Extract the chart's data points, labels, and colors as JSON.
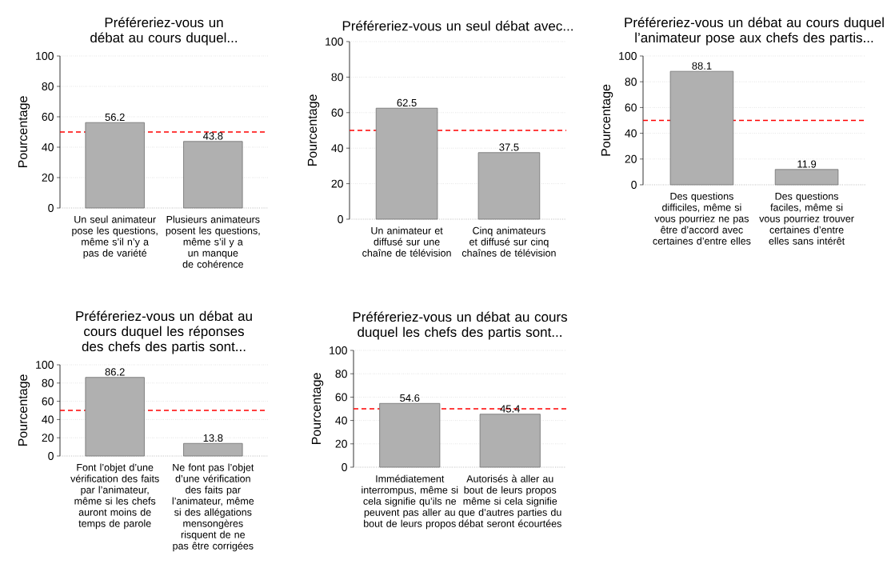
{
  "chart_data": [
    {
      "type": "bar",
      "title": "Préféreriez-vous un débat au cours duquel...",
      "ylabel": "Pourcentage",
      "categories": [
        "Un seul animateur pose les questions, même s’il n’y a pas de variété",
        "Plusieurs animateurs posent les questions, même s’il y a un manque de cohérence"
      ],
      "values": [
        56.2,
        43.8
      ],
      "color": "#b0b0b0",
      "ylim": [
        0,
        100
      ],
      "yticks": [
        0,
        20,
        40,
        60,
        80,
        100
      ],
      "grid": "y",
      "data_labels": true,
      "ref_lines": [
        {
          "axis": "y",
          "value": 50,
          "color": "#ff0000",
          "line_style": "dashed"
        }
      ]
    },
    {
      "type": "bar",
      "title": "Préféreriez-vous un seul débat avec...",
      "ylabel": "Pourcentage",
      "categories": [
        "Un animateur et diffusé sur une chaîne de télévision",
        "Cinq animateurs et diffusé sur cinq chaînes de télévision"
      ],
      "values": [
        62.5,
        37.5
      ],
      "color": "#b0b0b0",
      "ylim": [
        0,
        100
      ],
      "yticks": [
        0,
        20,
        40,
        60,
        80,
        100
      ],
      "grid": "y",
      "data_labels": true,
      "ref_lines": [
        {
          "axis": "y",
          "value": 50,
          "color": "#ff0000",
          "line_style": "dashed"
        }
      ]
    },
    {
      "type": "bar",
      "title": "Préféreriez-vous un débat au cours duquel l’animateur pose aux chefs des partis...",
      "ylabel": "Pourcentage",
      "categories": [
        "Des questions difficiles, même si vous pourriez ne pas être d’accord avec certaines d’entre elles",
        "Des questions faciles, même si vous pourriez trouver certaines d’entre elles sans intérêt"
      ],
      "values": [
        88.1,
        11.9
      ],
      "color": "#b0b0b0",
      "ylim": [
        0,
        100
      ],
      "yticks": [
        0,
        20,
        40,
        60,
        80,
        100
      ],
      "grid": "y",
      "data_labels": true,
      "ref_lines": [
        {
          "axis": "y",
          "value": 50,
          "color": "#ff0000",
          "line_style": "dashed"
        }
      ]
    },
    {
      "type": "bar",
      "title": "Préféreriez-vous un débat au cours duquel les réponses des chefs des partis sont...",
      "ylabel": "Pourcentage",
      "categories": [
        "Font l’objet d’une vérification des faits par l’animateur, même si les chefs auront moins de temps de parole",
        "Ne font pas l’objet d’une vérification des faits par l’animateur, même si des allégations mensongères risquent de ne pas être corrigées"
      ],
      "values": [
        86.2,
        13.8
      ],
      "color": "#b0b0b0",
      "ylim": [
        0,
        100
      ],
      "yticks": [
        0,
        20,
        40,
        60,
        80,
        100
      ],
      "grid": "y",
      "data_labels": true,
      "ref_lines": [
        {
          "axis": "y",
          "value": 50,
          "color": "#ff0000",
          "line_style": "dashed"
        }
      ]
    },
    {
      "type": "bar",
      "title": "Préféreriez-vous un débat au cours duquel les chefs des partis sont...",
      "ylabel": "Pourcentage",
      "categories": [
        "Immédiatement interrompus, même si cela signifie qu’ils ne peuvent pas aller au bout de leurs propos",
        "Autorisés à aller au bout de leurs propos même si cela signifie que d’autres parties du débat seront écourtées"
      ],
      "values": [
        54.6,
        45.4
      ],
      "color": "#b0b0b0",
      "ylim": [
        0,
        100
      ],
      "yticks": [
        0,
        20,
        40,
        60,
        80,
        100
      ],
      "grid": "y",
      "data_labels": true,
      "ref_lines": [
        {
          "axis": "y",
          "value": 50,
          "color": "#ff0000",
          "line_style": "dashed"
        }
      ]
    }
  ]
}
